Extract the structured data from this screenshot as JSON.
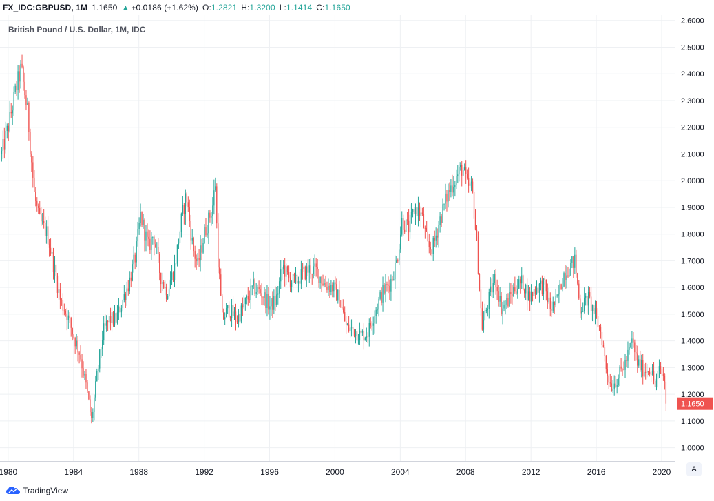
{
  "header": {
    "symbol": "FX_IDC:GBPUSD, 1M",
    "last": "1.1650",
    "change": "+0.0186 (+1.62%)",
    "open_label": "O:",
    "open": "1.2821",
    "high_label": "H:",
    "high": "1.3200",
    "low_label": "L:",
    "low": "1.1414",
    "close_label": "C:",
    "close": "1.1650",
    "up_arrow": "▲"
  },
  "chart_data": {
    "type": "candlestick",
    "title": "British Pound / U.S. Dollar, 1M, IDC",
    "symbol": "FX_IDC:GBPUSD",
    "interval": "1M",
    "xlabel": "",
    "ylabel": "",
    "ylim": [
      0.95,
      2.62
    ],
    "xlim": [
      1979.5,
      2020.8
    ],
    "y_ticks": [
      "1.0000",
      "1.1000",
      "1.2000",
      "1.3000",
      "1.4000",
      "1.5000",
      "1.6000",
      "1.7000",
      "1.8000",
      "1.9000",
      "2.0000",
      "2.1000",
      "2.2000",
      "2.3000",
      "2.4000",
      "2.5000",
      "2.6000"
    ],
    "x_ticks": [
      "1980",
      "1984",
      "1988",
      "1992",
      "1996",
      "2000",
      "2004",
      "2008",
      "2012",
      "2016",
      "2020"
    ],
    "last_price_label": "1.1650",
    "grid": true,
    "up_color": "#26a69a",
    "down_color": "#ef5350",
    "price_path": [
      [
        1979.6,
        2.1
      ],
      [
        1980.0,
        2.2
      ],
      [
        1980.5,
        2.35
      ],
      [
        1980.8,
        2.42
      ],
      [
        1981.2,
        2.25
      ],
      [
        1981.6,
        1.95
      ],
      [
        1981.9,
        1.85
      ],
      [
        1982.4,
        1.8
      ],
      [
        1982.9,
        1.65
      ],
      [
        1983.2,
        1.55
      ],
      [
        1983.6,
        1.5
      ],
      [
        1984.0,
        1.42
      ],
      [
        1984.4,
        1.35
      ],
      [
        1984.8,
        1.22
      ],
      [
        1985.1,
        1.1
      ],
      [
        1985.4,
        1.25
      ],
      [
        1985.8,
        1.43
      ],
      [
        1986.2,
        1.48
      ],
      [
        1986.6,
        1.48
      ],
      [
        1987.0,
        1.55
      ],
      [
        1987.4,
        1.62
      ],
      [
        1987.8,
        1.72
      ],
      [
        1988.1,
        1.87
      ],
      [
        1988.6,
        1.75
      ],
      [
        1988.9,
        1.8
      ],
      [
        1989.3,
        1.65
      ],
      [
        1989.7,
        1.58
      ],
      [
        1990.2,
        1.68
      ],
      [
        1990.6,
        1.85
      ],
      [
        1990.9,
        1.95
      ],
      [
        1991.3,
        1.75
      ],
      [
        1991.6,
        1.68
      ],
      [
        1992.0,
        1.8
      ],
      [
        1992.5,
        1.9
      ],
      [
        1992.7,
        2.0
      ],
      [
        1992.8,
        1.75
      ],
      [
        1993.1,
        1.48
      ],
      [
        1993.5,
        1.52
      ],
      [
        1994.0,
        1.48
      ],
      [
        1994.6,
        1.55
      ],
      [
        1995.0,
        1.6
      ],
      [
        1995.5,
        1.58
      ],
      [
        1996.0,
        1.53
      ],
      [
        1996.4,
        1.55
      ],
      [
        1996.8,
        1.68
      ],
      [
        1997.2,
        1.63
      ],
      [
        1997.6,
        1.62
      ],
      [
        1998.0,
        1.65
      ],
      [
        1998.5,
        1.67
      ],
      [
        1998.9,
        1.66
      ],
      [
        1999.4,
        1.61
      ],
      [
        1999.9,
        1.6
      ],
      [
        2000.3,
        1.55
      ],
      [
        2000.7,
        1.45
      ],
      [
        2001.2,
        1.44
      ],
      [
        2001.6,
        1.42
      ],
      [
        2002.0,
        1.43
      ],
      [
        2002.5,
        1.52
      ],
      [
        2002.9,
        1.58
      ],
      [
        2003.4,
        1.62
      ],
      [
        2003.8,
        1.7
      ],
      [
        2004.1,
        1.85
      ],
      [
        2004.5,
        1.82
      ],
      [
        2004.9,
        1.9
      ],
      [
        2005.3,
        1.87
      ],
      [
        2005.7,
        1.75
      ],
      [
        2006.0,
        1.75
      ],
      [
        2006.4,
        1.85
      ],
      [
        2006.9,
        1.95
      ],
      [
        2007.3,
        2.0
      ],
      [
        2007.8,
        2.05
      ],
      [
        2008.1,
        1.98
      ],
      [
        2008.4,
        1.97
      ],
      [
        2008.7,
        1.75
      ],
      [
        2009.0,
        1.45
      ],
      [
        2009.4,
        1.55
      ],
      [
        2009.8,
        1.64
      ],
      [
        2010.2,
        1.52
      ],
      [
        2010.6,
        1.55
      ],
      [
        2011.0,
        1.6
      ],
      [
        2011.5,
        1.62
      ],
      [
        2011.9,
        1.56
      ],
      [
        2012.3,
        1.6
      ],
      [
        2012.8,
        1.61
      ],
      [
        2013.2,
        1.52
      ],
      [
        2013.6,
        1.55
      ],
      [
        2014.0,
        1.65
      ],
      [
        2014.4,
        1.68
      ],
      [
        2014.7,
        1.7
      ],
      [
        2015.0,
        1.52
      ],
      [
        2015.5,
        1.56
      ],
      [
        2015.9,
        1.5
      ],
      [
        2016.3,
        1.43
      ],
      [
        2016.6,
        1.3
      ],
      [
        2016.9,
        1.23
      ],
      [
        2017.3,
        1.26
      ],
      [
        2017.8,
        1.32
      ],
      [
        2018.2,
        1.4
      ],
      [
        2018.5,
        1.32
      ],
      [
        2018.9,
        1.29
      ],
      [
        2019.3,
        1.3
      ],
      [
        2019.6,
        1.23
      ],
      [
        2019.9,
        1.3
      ],
      [
        2020.2,
        1.25
      ],
      [
        2020.3,
        1.165
      ]
    ]
  },
  "footer": {
    "brand": "TradingView"
  },
  "controls": {
    "auto_scale": "A"
  }
}
